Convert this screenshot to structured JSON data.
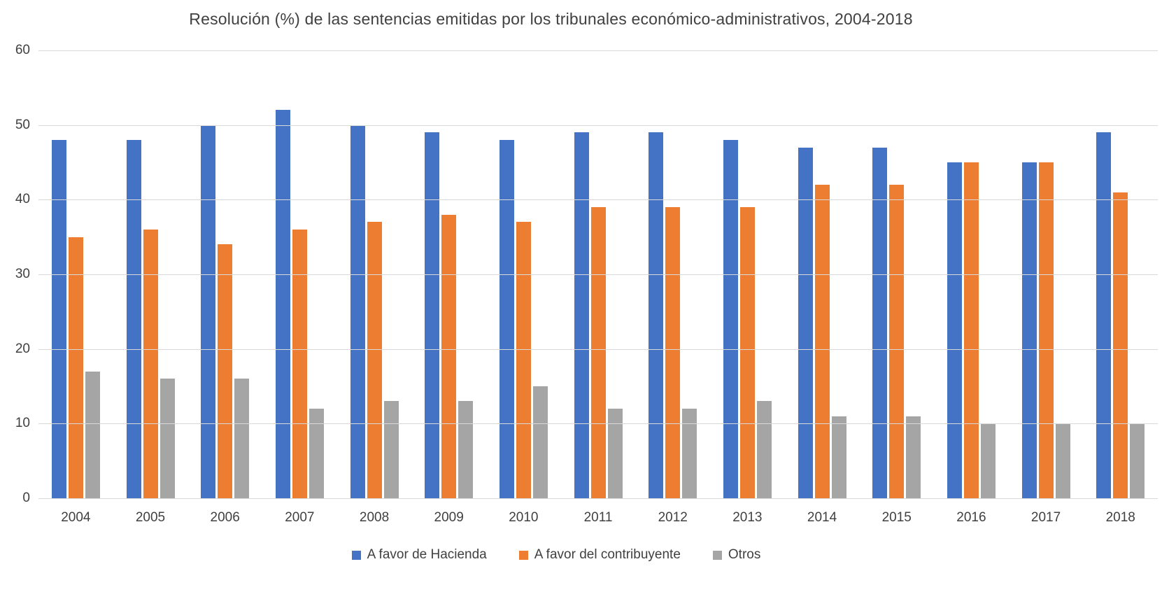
{
  "title": "Resolución (%) de las sentencias emitidas por los tribunales económico-administrativos, 2004-2018",
  "colors": {
    "grid": "#d9d9d9",
    "text": "#404040",
    "background": "#ffffff"
  },
  "chart_data": {
    "type": "bar",
    "title": "Resolución (%) de las sentencias emitidas por los tribunales económico-administrativos, 2004-2018",
    "xlabel": "",
    "ylabel": "",
    "ylim": [
      0,
      60
    ],
    "yticks": [
      0,
      10,
      20,
      30,
      40,
      50,
      60
    ],
    "grid": true,
    "legend_position": "bottom",
    "categories": [
      "2004",
      "2005",
      "2006",
      "2007",
      "2008",
      "2009",
      "2010",
      "2011",
      "2012",
      "2013",
      "2014",
      "2015",
      "2016",
      "2017",
      "2018"
    ],
    "series": [
      {
        "name": "A favor de Hacienda",
        "color": "#4472c4",
        "values": [
          48,
          48,
          50,
          52,
          50,
          49,
          48,
          49,
          49,
          48,
          47,
          47,
          45,
          45,
          49
        ]
      },
      {
        "name": "A favor del contribuyente",
        "color": "#ed7d31",
        "values": [
          35,
          36,
          34,
          36,
          37,
          38,
          37,
          39,
          39,
          39,
          42,
          42,
          45,
          45,
          41
        ]
      },
      {
        "name": "Otros",
        "color": "#a5a5a5",
        "values": [
          17,
          16,
          16,
          12,
          13,
          13,
          15,
          12,
          12,
          13,
          11,
          11,
          10,
          10,
          10
        ]
      }
    ]
  }
}
